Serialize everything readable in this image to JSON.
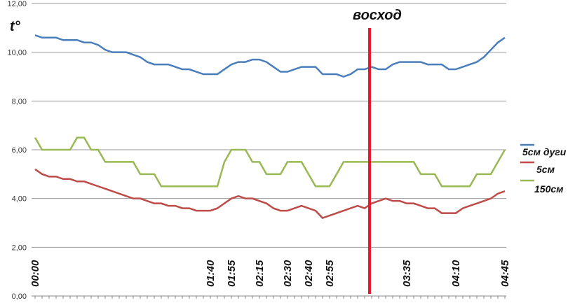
{
  "chart_data": {
    "type": "line",
    "y_label": "t°",
    "annotation": {
      "text": "восход",
      "x": 47.7,
      "color": "#e8192c"
    },
    "categories": [
      "00:00",
      null,
      null,
      null,
      null,
      null,
      null,
      null,
      null,
      null,
      null,
      null,
      null,
      null,
      null,
      null,
      null,
      null,
      null,
      null,
      null,
      null,
      null,
      null,
      null,
      "01:40",
      null,
      null,
      "01:55",
      null,
      null,
      null,
      "02:15",
      null,
      null,
      null,
      "02:30",
      null,
      null,
      "02:40",
      null,
      null,
      "02:55",
      null,
      null,
      null,
      null,
      null,
      null,
      null,
      null,
      null,
      null,
      "03:35",
      null,
      null,
      null,
      null,
      null,
      null,
      "04:10",
      null,
      null,
      null,
      null,
      null,
      null,
      "04:45"
    ],
    "series": [
      {
        "name": "5см дуги",
        "color": "#4a7ebb",
        "values": [
          10.7,
          10.6,
          10.6,
          10.6,
          10.5,
          10.5,
          10.5,
          10.4,
          10.4,
          10.3,
          10.1,
          10.0,
          10.0,
          10.0,
          9.9,
          9.8,
          9.6,
          9.5,
          9.5,
          9.5,
          9.4,
          9.3,
          9.3,
          9.2,
          9.1,
          9.1,
          9.1,
          9.3,
          9.5,
          9.6,
          9.6,
          9.7,
          9.7,
          9.6,
          9.4,
          9.2,
          9.2,
          9.3,
          9.4,
          9.4,
          9.4,
          9.1,
          9.1,
          9.1,
          9.0,
          9.1,
          9.3,
          9.3,
          9.4,
          9.3,
          9.3,
          9.5,
          9.6,
          9.6,
          9.6,
          9.6,
          9.5,
          9.5,
          9.5,
          9.3,
          9.3,
          9.4,
          9.5,
          9.6,
          9.8,
          10.1,
          10.4,
          10.6
        ]
      },
      {
        "name": "5см",
        "color": "#be4b48",
        "values": [
          5.2,
          5.0,
          4.9,
          4.9,
          4.8,
          4.8,
          4.7,
          4.7,
          4.6,
          4.5,
          4.4,
          4.3,
          4.2,
          4.1,
          4.0,
          4.0,
          3.9,
          3.8,
          3.8,
          3.7,
          3.7,
          3.6,
          3.6,
          3.5,
          3.5,
          3.5,
          3.6,
          3.8,
          4.0,
          4.1,
          4.0,
          4.0,
          3.9,
          3.8,
          3.6,
          3.5,
          3.5,
          3.6,
          3.7,
          3.6,
          3.5,
          3.2,
          3.3,
          3.4,
          3.5,
          3.6,
          3.7,
          3.6,
          3.8,
          3.9,
          4.0,
          3.9,
          3.9,
          3.8,
          3.8,
          3.7,
          3.6,
          3.6,
          3.4,
          3.4,
          3.4,
          3.6,
          3.7,
          3.8,
          3.9,
          4.0,
          4.2,
          4.3
        ]
      },
      {
        "name": "150см",
        "color": "#98b954",
        "values": [
          6.5,
          6,
          6,
          6,
          6,
          6,
          6.5,
          6.5,
          6,
          6,
          5.5,
          5.5,
          5.5,
          5.5,
          5.5,
          5,
          5,
          5,
          4.5,
          4.5,
          4.5,
          4.5,
          4.5,
          4.5,
          4.5,
          4.5,
          4.5,
          5.5,
          6,
          6,
          6,
          5.5,
          5.5,
          5,
          5,
          5,
          5.5,
          5.5,
          5.5,
          5,
          4.5,
          4.5,
          4.5,
          5,
          5.5,
          5.5,
          5.5,
          5.5,
          5.5,
          5.5,
          5.5,
          5.5,
          5.5,
          5.5,
          5.5,
          5,
          5,
          5,
          4.5,
          4.5,
          4.5,
          4.5,
          4.5,
          5,
          5,
          5,
          5.5,
          6
        ]
      }
    ],
    "ylim": [
      0,
      12
    ],
    "yticks": [
      {
        "value": 0,
        "label": "0,00"
      },
      {
        "value": 2,
        "label": "2,00"
      },
      {
        "value": 4,
        "label": "4,00"
      },
      {
        "value": 6,
        "label": "6,00"
      },
      {
        "value": 8,
        "label": "8,00"
      },
      {
        "value": 10,
        "label": "10,00"
      },
      {
        "value": 12,
        "label": "12,00"
      }
    ],
    "grid": true
  }
}
